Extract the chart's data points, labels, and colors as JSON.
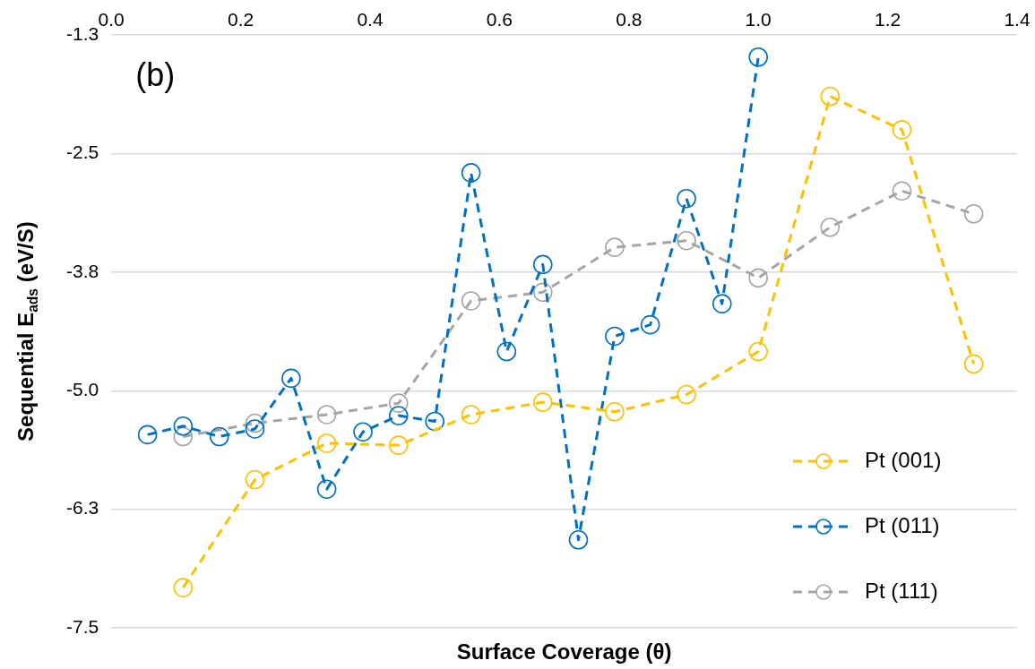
{
  "chart_data": {
    "type": "line",
    "xlabel": "Surface Coverage (θ)",
    "ylabel": "Sequential E$_{ads}$ (eV/S)",
    "annotations": [
      "(b)"
    ],
    "xlim": [
      0,
      1.4
    ],
    "xticks": [
      {
        "value": 0,
        "label": "0.0"
      },
      0.2,
      0.4,
      0.6,
      0.8,
      {
        "value": 1,
        "label": "1.0"
      },
      1.2,
      1.4
    ],
    "ylim": [
      -7.5,
      -1.3
    ],
    "yticks": [
      -7.5,
      {
        "value": -6.26,
        "label": "-6.3"
      },
      {
        "value": -5.02,
        "label": "-5.0"
      },
      {
        "value": -3.78,
        "label": "-3.8"
      },
      {
        "value": -2.54,
        "label": "-2.5"
      },
      -1.3
    ],
    "grid": "y",
    "legend": "bottom right",
    "marker": "circle",
    "line_style": "dashed",
    "series": [
      {
        "name": "Pt (001)",
        "color": "#ffc000",
        "x": [
          0.111,
          0.222,
          0.333,
          0.444,
          0.556,
          0.667,
          0.778,
          0.889,
          1.0,
          1.111,
          1.222,
          1.333
        ],
        "values": [
          -7.08,
          -5.95,
          -5.57,
          -5.59,
          -5.27,
          -5.14,
          -5.24,
          -5.06,
          -4.61,
          -1.94,
          -2.29,
          -4.74
        ]
      },
      {
        "name": "Pt (011)",
        "color": "#0070c0",
        "x": [
          0.056,
          0.111,
          0.167,
          0.222,
          0.278,
          0.333,
          0.389,
          0.444,
          0.5,
          0.556,
          0.611,
          0.667,
          0.722,
          0.778,
          0.833,
          0.889,
          0.944,
          1.0
        ],
        "values": [
          -5.48,
          -5.39,
          -5.5,
          -5.42,
          -4.89,
          -6.05,
          -5.45,
          -5.28,
          -5.34,
          -2.74,
          -4.61,
          -3.7,
          -6.58,
          -4.45,
          -4.33,
          -3.01,
          -4.11,
          -1.53
        ]
      },
      {
        "name": "Pt (111)",
        "color": "#a5a5a5",
        "x": [
          0.111,
          0.222,
          0.333,
          0.444,
          0.556,
          0.667,
          0.778,
          0.889,
          1.0,
          1.111,
          1.222,
          1.333
        ],
        "values": [
          -5.5,
          -5.36,
          -5.27,
          -5.15,
          -4.08,
          -3.99,
          -3.52,
          -3.45,
          -3.84,
          -3.31,
          -2.93,
          -3.17
        ]
      }
    ]
  }
}
